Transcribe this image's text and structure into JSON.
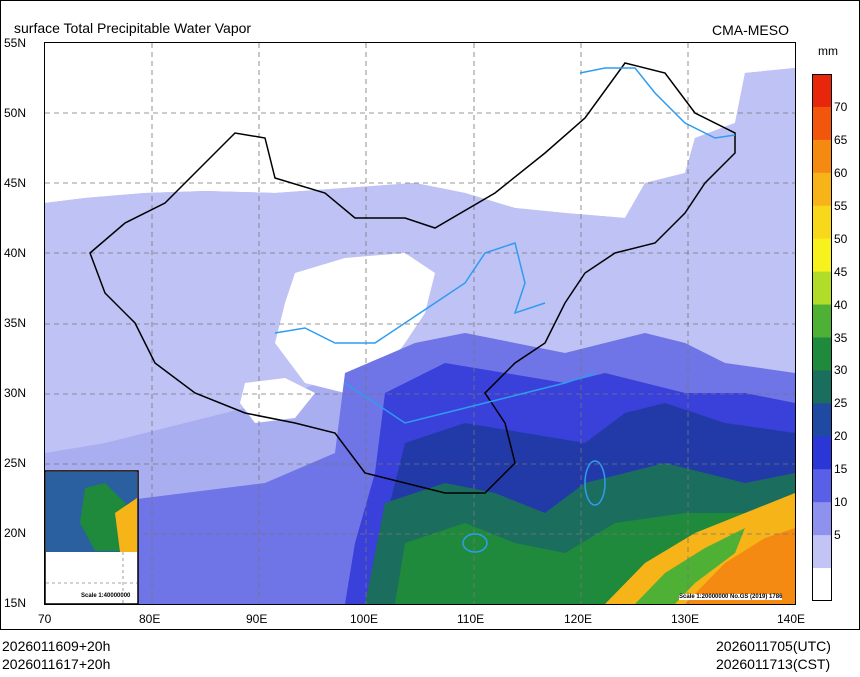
{
  "title": "surface Total Precipitable Water Vapor",
  "source": "CMA-MESO",
  "unit": "mm",
  "lat_labels": [
    "55N",
    "50N",
    "45N",
    "40N",
    "35N",
    "30N",
    "25N",
    "20N",
    "15N"
  ],
  "lon_labels": [
    "70",
    "80E",
    "90E",
    "100E",
    "110E",
    "120E",
    "130E",
    "140E"
  ],
  "colorbar": {
    "ticks": [
      "70",
      "65",
      "60",
      "55",
      "50",
      "45",
      "40",
      "35",
      "30",
      "25",
      "20",
      "15",
      "10",
      "5"
    ],
    "colors": [
      "#e8260c",
      "#f2560d",
      "#f58a12",
      "#f7b418",
      "#f8d81a",
      "#f7f21e",
      "#b2dc2a",
      "#4fb036",
      "#1f8a3c",
      "#1a6e5e",
      "#1f4aa2",
      "#2a36d6",
      "#5a5fe8",
      "#8e92ee",
      "#c2c4f6",
      "#ffffff"
    ]
  },
  "inset_scale": "Scale 1:40000000",
  "map_scale": "Scale 1:20000000 No.GS (2019) 1786",
  "init_time_1": "2026011609+20h",
  "init_time_2": "2026011617+20h",
  "valid_utc": "2026011705(UTC)",
  "valid_cst": "2026011713(CST)",
  "colors": {
    "land_dry": "#ffffff",
    "base_low": "#a9aef0"
  }
}
